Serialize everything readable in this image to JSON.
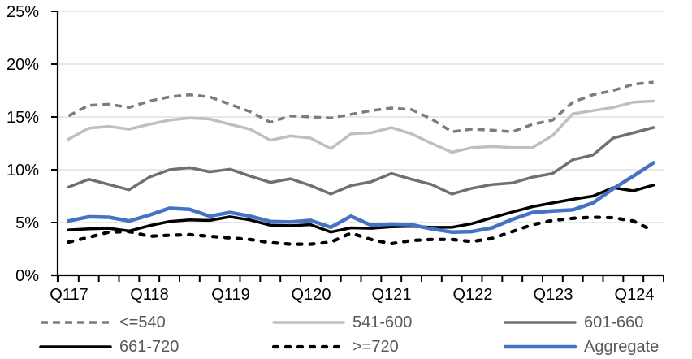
{
  "chart_data": {
    "type": "line",
    "title": "",
    "xlabel": "",
    "ylabel": "",
    "ylim": [
      0,
      25
    ],
    "grid": "horizontal",
    "legend_position": "bottom",
    "y_tick_labels": [
      "25%",
      "20%",
      "15%",
      "10%",
      "5%",
      "0%"
    ],
    "x_tick_labels": [
      "Q117",
      "Q118",
      "Q119",
      "Q120",
      "Q121",
      "Q122",
      "Q123",
      "Q124"
    ],
    "categories": [
      "Q117",
      "Q217",
      "Q317",
      "Q417",
      "Q118",
      "Q218",
      "Q318",
      "Q418",
      "Q119",
      "Q219",
      "Q319",
      "Q419",
      "Q120",
      "Q220",
      "Q320",
      "Q420",
      "Q121",
      "Q221",
      "Q321",
      "Q421",
      "Q122",
      "Q222",
      "Q322",
      "Q422",
      "Q123",
      "Q223",
      "Q323",
      "Q423",
      "Q124",
      "Q224"
    ],
    "axis_color": "#000000",
    "gridline_color": "#d9d9d9",
    "series": [
      {
        "name": "<=540",
        "color": "#7c7c7c",
        "style": "dashed",
        "values": [
          15.1,
          16.1,
          16.2,
          15.9,
          16.5,
          16.9,
          17.1,
          16.9,
          16.2,
          15.5,
          14.5,
          15.1,
          15.0,
          14.9,
          15.25,
          15.6,
          15.85,
          15.7,
          14.8,
          13.6,
          13.85,
          13.75,
          13.6,
          14.3,
          14.7,
          16.4,
          17.1,
          17.5,
          18.1,
          18.3
        ]
      },
      {
        "name": "541-600",
        "color": "#bfbfbf",
        "style": "solid",
        "values": [
          12.9,
          13.95,
          14.1,
          13.85,
          14.3,
          14.7,
          14.9,
          14.8,
          14.3,
          13.85,
          12.8,
          13.2,
          13.0,
          12.0,
          13.4,
          13.5,
          14.0,
          13.4,
          12.5,
          11.65,
          12.1,
          12.2,
          12.1,
          12.1,
          13.25,
          15.3,
          15.6,
          15.9,
          16.4,
          16.5
        ]
      },
      {
        "name": "601-660",
        "color": "#707070",
        "style": "solid",
        "values": [
          8.35,
          9.1,
          8.6,
          8.1,
          9.3,
          10.0,
          10.2,
          9.8,
          10.05,
          9.4,
          8.8,
          9.15,
          8.5,
          7.7,
          8.5,
          8.85,
          9.65,
          9.1,
          8.6,
          7.7,
          8.25,
          8.6,
          8.75,
          9.3,
          9.65,
          10.95,
          11.4,
          13.0,
          13.5,
          14.0
        ]
      },
      {
        "name": "661-720",
        "color": "#000000",
        "style": "solid",
        "values": [
          4.3,
          4.4,
          4.45,
          4.2,
          4.7,
          5.1,
          5.25,
          5.2,
          5.55,
          5.25,
          4.75,
          4.7,
          4.8,
          4.1,
          4.5,
          4.45,
          4.6,
          4.65,
          4.55,
          4.55,
          4.9,
          5.45,
          6.0,
          6.5,
          6.85,
          7.2,
          7.5,
          8.3,
          8.0,
          8.55
        ]
      },
      {
        "name": ">=720",
        "color": "#000000",
        "style": "dashed-thick",
        "values": [
          3.15,
          3.6,
          4.1,
          4.15,
          3.7,
          3.8,
          3.85,
          3.7,
          3.55,
          3.4,
          3.1,
          2.95,
          2.95,
          3.15,
          4.0,
          3.4,
          3.0,
          3.3,
          3.4,
          3.4,
          3.2,
          3.5,
          4.15,
          4.8,
          5.2,
          5.4,
          5.5,
          5.45,
          5.15,
          4.2
        ]
      },
      {
        "name": "Aggregate",
        "color": "#4472c4",
        "style": "solid",
        "emphasis": true,
        "values": [
          5.15,
          5.55,
          5.5,
          5.15,
          5.7,
          6.35,
          6.25,
          5.6,
          5.95,
          5.6,
          5.1,
          5.05,
          5.2,
          4.55,
          5.6,
          4.75,
          4.85,
          4.8,
          4.4,
          4.1,
          4.15,
          4.5,
          5.3,
          5.95,
          6.1,
          6.2,
          6.85,
          8.2,
          9.4,
          10.65
        ]
      }
    ]
  }
}
